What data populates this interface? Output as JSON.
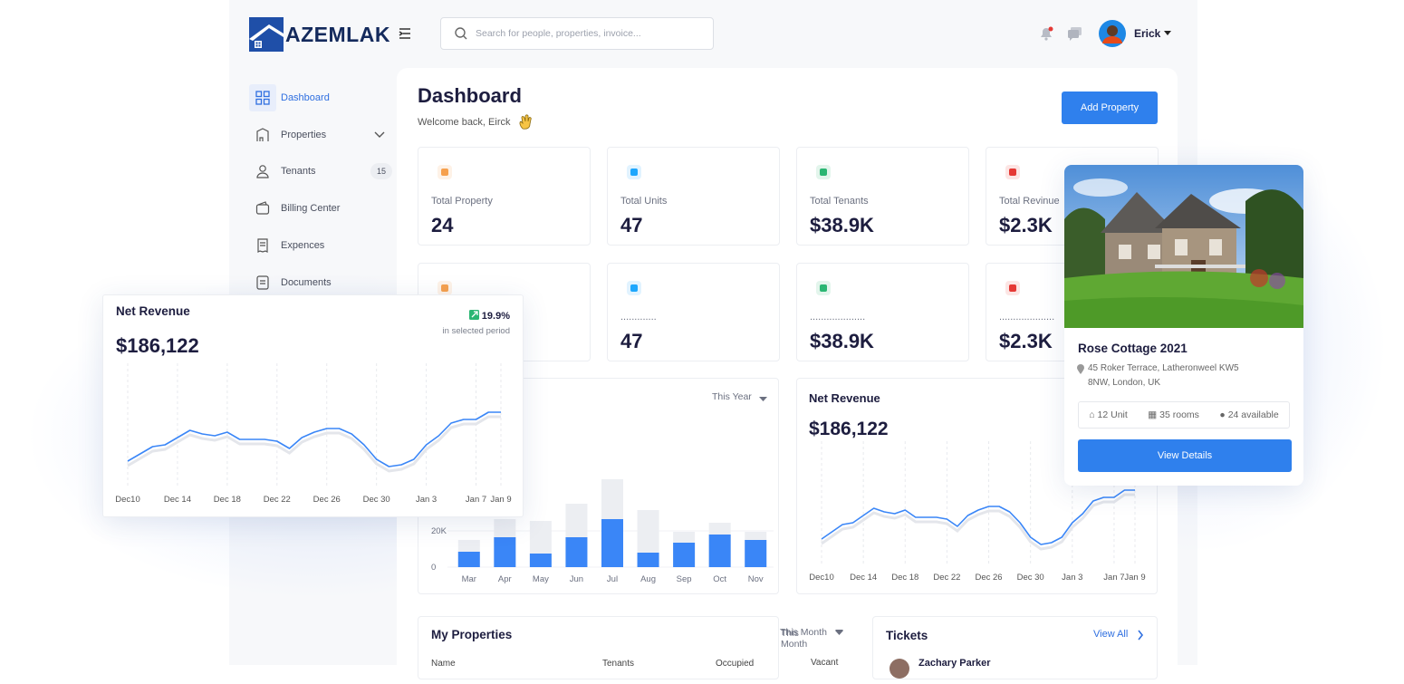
{
  "header": {
    "logo": "AZEMLAK",
    "search_placeholder": "Search for people, properties, invoice...",
    "user": "Erick"
  },
  "sidebar": {
    "items": [
      {
        "label": "Dashboard"
      },
      {
        "label": "Properties"
      },
      {
        "label": "Tenants",
        "badge": "15"
      },
      {
        "label": "Billing Center"
      },
      {
        "label": "Expences"
      },
      {
        "label": "Documents"
      }
    ]
  },
  "page": {
    "title": "Dashboard",
    "subtitle": "Welcome back, Eirck",
    "button": "Add Property"
  },
  "stats": {
    "rows": [
      [
        {
          "label": "Total Property",
          "value": "24"
        },
        {
          "label": "Total Units",
          "value": "47"
        },
        {
          "label": "Total Tenants",
          "value": "$38.9K"
        },
        {
          "label": "Total Revinue",
          "value": "$2.3K"
        }
      ],
      [
        {
          "label": ".............",
          "value": "47"
        },
        {
          "label": "....................",
          "value": "$38.9K"
        },
        {
          "label": "....................",
          "value": "$2.3K"
        }
      ]
    ]
  },
  "chart_data": [
    {
      "type": "bar",
      "filter": "This Year",
      "categories": [
        "Mar",
        "Apr",
        "May",
        "Jun",
        "Jul",
        "Aug",
        "Sep",
        "Oct",
        "Nov"
      ],
      "series": [
        {
          "color": "#eceef2",
          "values": [
            15000,
            26500,
            25500,
            35000,
            48500,
            31500,
            19500,
            24500,
            19500
          ]
        },
        {
          "color": "#3a86f7",
          "values": [
            8500,
            16500,
            7500,
            16500,
            26500,
            8000,
            13500,
            18000,
            15000
          ]
        }
      ],
      "ylim": [
        0,
        60000
      ],
      "yticks": [
        0,
        {
          "value": 20000,
          "label": "20K"
        }
      ],
      "grid": true
    },
    {
      "type": "line",
      "title": "Net Revenue",
      "value": "$186,122",
      "categories": [
        "Dec10",
        null,
        null,
        null,
        "Dec 14",
        null,
        null,
        null,
        "Dec 18",
        null,
        null,
        null,
        "Dec 22",
        null,
        null,
        null,
        "Dec 26",
        null,
        null,
        null,
        "Dec 30",
        null,
        null,
        null,
        "Jan 3",
        null,
        null,
        null,
        "Jan 7",
        null,
        "Jan 9"
      ],
      "series": [
        {
          "color": "#3a86f7",
          "values": [
            22,
            30,
            38,
            40,
            48,
            56,
            52,
            50,
            54,
            46,
            46,
            46,
            44,
            36,
            48,
            54,
            58,
            58,
            52,
            40,
            24,
            16,
            18,
            24,
            40,
            50,
            64,
            68,
            68,
            76,
            76
          ]
        }
      ],
      "ylim": [
        0,
        120
      ],
      "grid": true
    },
    {
      "type": "line",
      "title": "Net Revenue",
      "value": "$186,122",
      "change": "19.9%",
      "change_note": "in selected period",
      "categories": [
        "Dec10",
        null,
        null,
        null,
        "Dec 14",
        null,
        null,
        null,
        "Dec 18",
        null,
        null,
        null,
        "Dec 22",
        null,
        null,
        null,
        "Dec 26",
        null,
        null,
        null,
        "Dec 30",
        null,
        null,
        null,
        "Jan 3",
        null,
        null,
        null,
        "Jan 7",
        null,
        "Jan 9"
      ],
      "series": [
        {
          "color": "#3a86f7",
          "values": [
            22,
            30,
            38,
            40,
            48,
            56,
            52,
            50,
            54,
            46,
            46,
            46,
            44,
            36,
            48,
            54,
            58,
            58,
            52,
            40,
            24,
            16,
            18,
            24,
            40,
            50,
            64,
            68,
            68,
            76,
            76
          ]
        }
      ],
      "ylim": [
        0,
        120
      ],
      "grid": true
    }
  ],
  "property_card": {
    "title": "Rose Cottage 2021",
    "address": [
      "45 Roker Terrace, Latheronweel KW5",
      "8NW, London, UK"
    ],
    "units": "12 Unit",
    "rooms": "35 rooms",
    "available": "24 available",
    "button": "View Details"
  },
  "my_properties": {
    "title": "My Properties",
    "filter": "This Month",
    "columns": [
      "Name",
      "Tenants",
      "Occupied",
      "Vacant"
    ]
  },
  "tickets": {
    "title": "Tickets",
    "link": "View All",
    "items": [
      {
        "name": "Zachary Parker"
      }
    ]
  }
}
